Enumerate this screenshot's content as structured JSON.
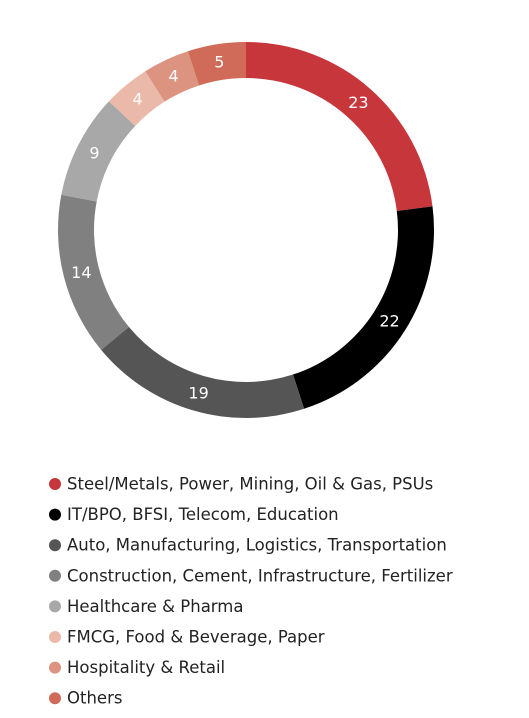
{
  "chart_data": {
    "type": "donut",
    "categories": [
      "Steel/Metals, Power, Mining, Oil & Gas, PSUs",
      "IT/BPO, BFSI, Telecom, Education",
      "Auto, Manufacturing, Logistics, Transportation",
      "Construction, Cement, Infrastructure, Fertilizer",
      "Healthcare & Pharma",
      "FMCG, Food & Beverage, Paper",
      "Hospitality & Retail",
      "Others"
    ],
    "values": [
      23,
      22,
      19,
      14,
      9,
      4,
      4,
      5
    ],
    "colors": [
      "#c6363b",
      "#000000",
      "#555555",
      "#808080",
      "#a8a8a8",
      "#eab9a9",
      "#dc9380",
      "#d06b5a"
    ],
    "legend": "bottom"
  }
}
